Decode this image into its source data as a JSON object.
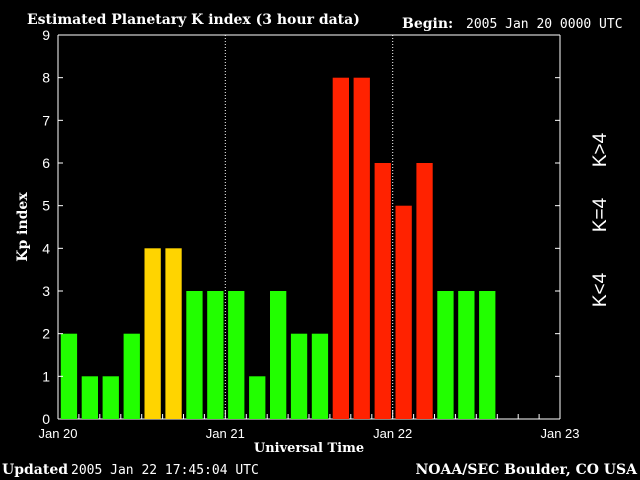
{
  "header": {
    "title": "Estimated Planetary K index (3 hour data)",
    "begin_label": "Begin:",
    "begin_value": "2005 Jan 20 0000 UTC"
  },
  "footer": {
    "updated_label": "Updated",
    "updated_value": "2005 Jan 22 17:45:04 UTC",
    "source": "NOAA/SEC Boulder, CO USA"
  },
  "legend": {
    "low": "K<4",
    "mid": "K=4",
    "high": "K>4"
  },
  "colors": {
    "low": "#22ff00",
    "mid": "#ffd400",
    "high": "#ff2200",
    "axis": "#ffffff",
    "background": "#000000"
  },
  "chart_data": {
    "type": "bar",
    "title": "Estimated Planetary K index (3 hour data)",
    "xlabel": "Universal Time",
    "ylabel": "Kp index",
    "ylim": [
      0,
      9
    ],
    "yticks": [
      "0",
      "1",
      "2",
      "3",
      "4",
      "5",
      "6",
      "7",
      "8",
      "9"
    ],
    "xticks": [
      "Jan 20",
      "Jan 21",
      "Jan 22",
      "Jan 23"
    ],
    "bar_interval_hours": 3,
    "day_separators": true,
    "values": [
      2,
      1,
      1,
      2,
      4,
      4,
      3,
      3,
      3,
      1,
      3,
      2,
      2,
      8,
      8,
      6,
      5,
      6,
      3,
      3,
      3
    ]
  }
}
